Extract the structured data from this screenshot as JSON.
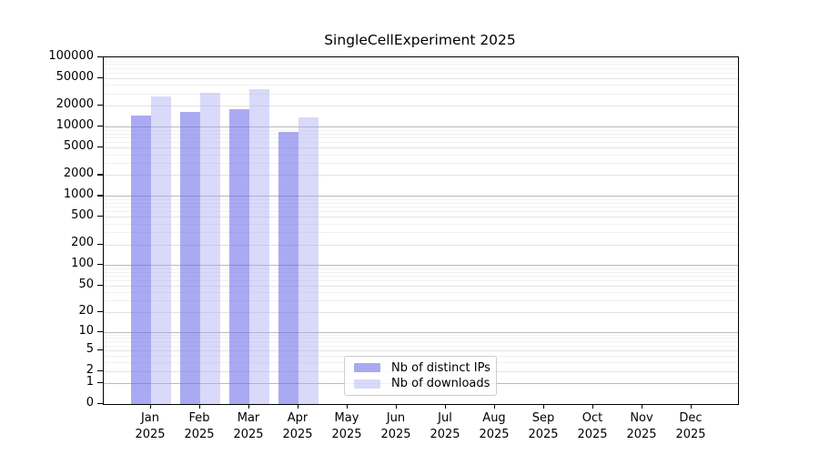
{
  "chart_data": {
    "type": "bar",
    "title": "SingleCellExperiment 2025",
    "xlabel": "",
    "ylabel": "",
    "y_scale": "log1p",
    "ylim": [
      0,
      100000
    ],
    "grid": true,
    "legend_position": "lower-center-inside",
    "y_ticks": [
      0,
      1,
      2,
      5,
      10,
      20,
      50,
      100,
      200,
      500,
      1000,
      2000,
      5000,
      10000,
      20000,
      50000,
      100000
    ],
    "x_categories": [
      {
        "month": "Jan",
        "year": "2025"
      },
      {
        "month": "Feb",
        "year": "2025"
      },
      {
        "month": "Mar",
        "year": "2025"
      },
      {
        "month": "Apr",
        "year": "2025"
      },
      {
        "month": "May",
        "year": "2025"
      },
      {
        "month": "Jun",
        "year": "2025"
      },
      {
        "month": "Jul",
        "year": "2025"
      },
      {
        "month": "Aug",
        "year": "2025"
      },
      {
        "month": "Sep",
        "year": "2025"
      },
      {
        "month": "Oct",
        "year": "2025"
      },
      {
        "month": "Nov",
        "year": "2025"
      },
      {
        "month": "Dec",
        "year": "2025"
      }
    ],
    "series": [
      {
        "name": "Nb of distinct IPs",
        "color": "#6868e8",
        "opacity": 0.56,
        "values": [
          14600,
          16500,
          18000,
          8300,
          null,
          null,
          null,
          null,
          null,
          null,
          null,
          null
        ]
      },
      {
        "name": "Nb of downloads",
        "color": "#a5a5f2",
        "opacity": 0.42,
        "values": [
          27300,
          30800,
          34300,
          13500,
          null,
          null,
          null,
          null,
          null,
          null,
          null,
          null
        ]
      }
    ],
    "grid_colors": {
      "decade": "#bbbbbb",
      "labeled": "#e3e3e3",
      "minor": "#f1f1f1"
    }
  }
}
